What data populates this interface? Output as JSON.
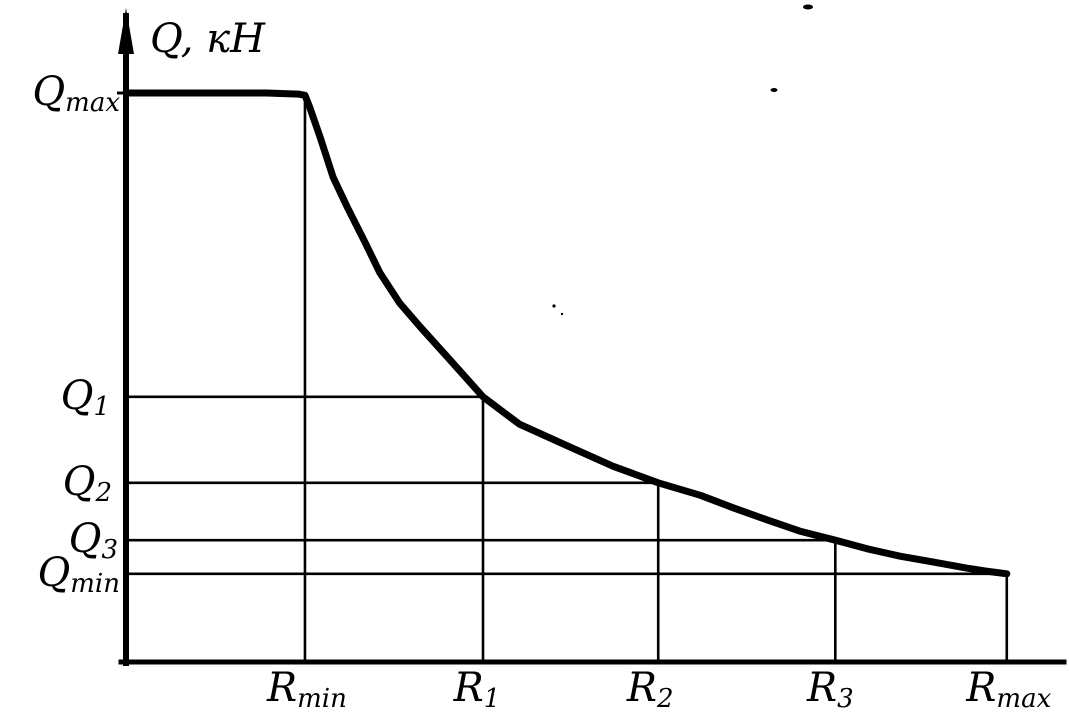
{
  "figure": {
    "background_color": "#ffffff",
    "ink_color": "#000000",
    "axis_title": "Q, кН"
  },
  "chart_data": {
    "type": "line",
    "title": "",
    "ylabel": "Q, кН",
    "xlabel": "",
    "legend": null,
    "grid": "guide lines drop from each curve point to both axes",
    "y_tick_labels": [
      {
        "main": "Q",
        "sub": "max"
      },
      {
        "main": "Q",
        "sub": "1"
      },
      {
        "main": "Q",
        "sub": "2"
      },
      {
        "main": "Q",
        "sub": "3"
      },
      {
        "main": "Q",
        "sub": "min"
      }
    ],
    "x_tick_labels": [
      {
        "main": "R",
        "sub": "min"
      },
      {
        "main": "R",
        "sub": "1"
      },
      {
        "main": "R",
        "sub": "2"
      },
      {
        "main": "R",
        "sub": "3"
      },
      {
        "main": "R",
        "sub": "max"
      }
    ],
    "key_points": [
      {
        "radius": "Rmin",
        "load": "Qmax"
      },
      {
        "radius": "R1",
        "load": "Q1"
      },
      {
        "radius": "R2",
        "load": "Q2"
      },
      {
        "radius": "R3",
        "load": "Q3"
      },
      {
        "radius": "Rmax",
        "load": "Qmin"
      }
    ],
    "axis_range_rel": {
      "x": [
        0,
        1
      ],
      "y": [
        0,
        1
      ]
    },
    "x_ticks_rel": [
      0.191,
      0.381,
      0.568,
      0.757,
      0.94
    ],
    "y_levels_rel": [
      1.0,
      0.466,
      0.315,
      0.214,
      0.155
    ],
    "curve_points_rel": [
      [
        0.0,
        1.0
      ],
      [
        0.15,
        1.0
      ],
      [
        0.184,
        0.998
      ],
      [
        0.191,
        0.996
      ],
      [
        0.196,
        0.975
      ],
      [
        0.207,
        0.923
      ],
      [
        0.221,
        0.852
      ],
      [
        0.236,
        0.8
      ],
      [
        0.255,
        0.738
      ],
      [
        0.271,
        0.684
      ],
      [
        0.292,
        0.631
      ],
      [
        0.314,
        0.589
      ],
      [
        0.343,
        0.536
      ],
      [
        0.381,
        0.466
      ],
      [
        0.42,
        0.418
      ],
      [
        0.471,
        0.38
      ],
      [
        0.52,
        0.344
      ],
      [
        0.568,
        0.315
      ],
      [
        0.613,
        0.293
      ],
      [
        0.648,
        0.271
      ],
      [
        0.684,
        0.25
      ],
      [
        0.719,
        0.23
      ],
      [
        0.757,
        0.214
      ],
      [
        0.791,
        0.199
      ],
      [
        0.826,
        0.186
      ],
      [
        0.861,
        0.176
      ],
      [
        0.897,
        0.165
      ],
      [
        0.917,
        0.16
      ],
      [
        0.94,
        0.155
      ]
    ]
  }
}
